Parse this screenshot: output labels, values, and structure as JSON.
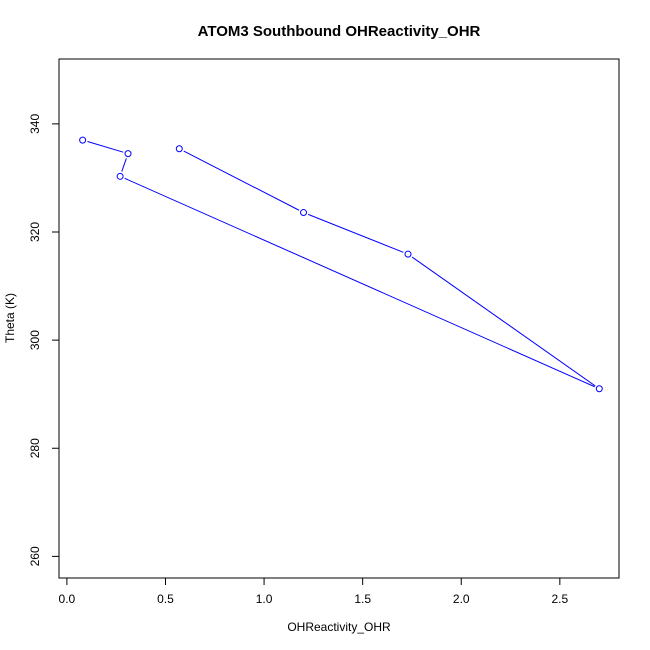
{
  "chart_data": {
    "type": "line",
    "title": "ATOM3 Southbound OHReactivity_OHR",
    "xlabel": "OHReactivity_OHR",
    "ylabel": "Theta (K)",
    "xlim": [
      -0.04,
      2.8
    ],
    "ylim": [
      256,
      352
    ],
    "xticks": [
      0.0,
      0.5,
      1.0,
      1.5,
      2.0,
      2.5
    ],
    "xtick_labels": [
      "0.0",
      "0.5",
      "1.0",
      "1.5",
      "2.0",
      "2.5"
    ],
    "yticks": [
      260,
      280,
      300,
      320,
      340
    ],
    "ytick_labels": [
      "260",
      "280",
      "300",
      "320",
      "340"
    ],
    "grid": false,
    "series": [
      {
        "color": "#0000ff",
        "markers": "open-circle",
        "x": [
          0.08,
          0.31,
          0.27,
          2.7,
          1.73,
          1.2,
          0.57
        ],
        "y": [
          337.0,
          334.5,
          330.3,
          291.0,
          315.9,
          323.6,
          335.4
        ]
      }
    ]
  }
}
